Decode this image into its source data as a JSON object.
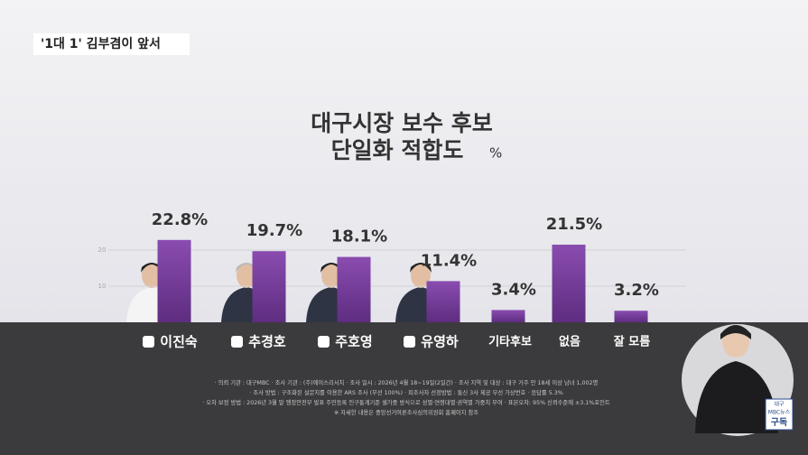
{
  "tag": "'1대 1' 김부겸이 앞서",
  "chart_data": {
    "type": "bar",
    "title": "대구시장 보수 후보",
    "subtitle": "단일화 적합도",
    "unit": "%",
    "categories": [
      "이진숙",
      "추경호",
      "주호영",
      "유영하",
      "기타후보",
      "없음",
      "잘 모름"
    ],
    "values": [
      22.8,
      19.7,
      18.1,
      11.4,
      3.4,
      21.5,
      3.2
    ],
    "value_labels": [
      "22.8%",
      "19.7%",
      "18.1%",
      "11.4%",
      "3.4%",
      "21.5%",
      "3.2%"
    ],
    "color": "#7a3e9e",
    "ylim": [
      0,
      30
    ],
    "yticks": [
      10,
      20
    ],
    "grid": true
  },
  "notes": [
    "· 의뢰 기관 : 대구MBC  · 조사 기관 : (주)에이스리서치  · 조사 일시 : 2026년 4월 18~19일(2일간)  · 조사 지역 및 대상 : 대구 거주 만 18세 이상 남녀 1,002명",
    "· 조사 방법 : 구조화된 설문지를 이용한 ARS 조사 (무선 100%)  · 피조사자 선정방법 : 통신 3사 제공 무선 가상번호  · 응답률 5.3%",
    "· 오차 보정 방법 : 2026년 3월 말 행정안전부 발표 주민등록 인구통계기준 셀가중 방식으로 성별·연령대별·권역별 가중치 부여  · 표본오차: 95% 신뢰수준에 ±3.1%포인트",
    "※ 자세한 내용은 중앙선거여론조사심의위원회 홈페이지 참조"
  ],
  "badge": [
    "대구",
    "MBC뉴스",
    "구독"
  ]
}
